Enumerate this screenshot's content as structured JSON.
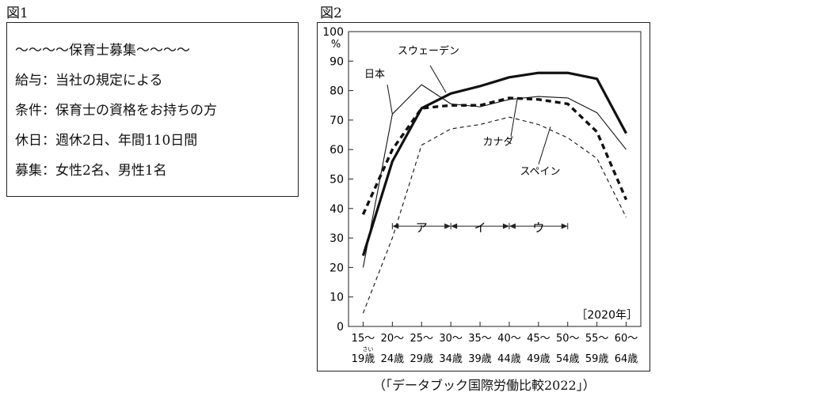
{
  "figure1": {
    "label": "図1",
    "lines": [
      "〜〜〜〜保育士募集〜〜〜〜",
      "給与：当社の規定による",
      "条件：保育士の資格をお持ちの方",
      "休日：週休2日、年間110日間",
      "募集：女性2名、男性1名"
    ]
  },
  "figure2": {
    "label": "図2",
    "source": "（「データブック国際労働比較2022」）"
  },
  "chart_data": {
    "type": "line",
    "year_label": "［2020年］",
    "ylabel": "%",
    "ylim": [
      0,
      100
    ],
    "yticks": [
      0,
      10,
      20,
      30,
      40,
      50,
      60,
      70,
      80,
      90,
      100
    ],
    "categories_top": [
      "15〜",
      "20〜",
      "25〜",
      "30〜",
      "35〜",
      "40〜",
      "45〜",
      "50〜",
      "55〜",
      "60〜"
    ],
    "categories_bottom": [
      "19歳",
      "24歳",
      "29歳",
      "34歳",
      "39歳",
      "44歳",
      "49歳",
      "54歳",
      "59歳",
      "64歳"
    ],
    "furigana": "さい",
    "series": [
      {
        "name": "日本",
        "style": "solid-thick",
        "values": [
          24,
          56,
          74,
          79,
          81.5,
          84.5,
          86,
          86,
          84,
          65.5
        ]
      },
      {
        "name": "スウェーデン",
        "style": "solid-thin",
        "values": [
          20,
          72,
          82,
          75.5,
          74.5,
          77,
          78,
          77.5,
          72.5,
          60
        ]
      },
      {
        "name": "カナダ",
        "style": "dashed-thick",
        "values": [
          38,
          60,
          74,
          75,
          75,
          77.5,
          77,
          75.5,
          66,
          43
        ]
      },
      {
        "name": "スペイン",
        "style": "dashed-thin",
        "values": [
          4.5,
          30,
          61.5,
          67,
          68.5,
          71,
          68.5,
          64,
          57,
          37
        ]
      }
    ],
    "ranges": [
      {
        "label": "ア",
        "from": 1,
        "to": 3
      },
      {
        "label": "イ",
        "from": 3,
        "to": 5
      },
      {
        "label": "ウ",
        "from": 5,
        "to": 7
      }
    ]
  }
}
